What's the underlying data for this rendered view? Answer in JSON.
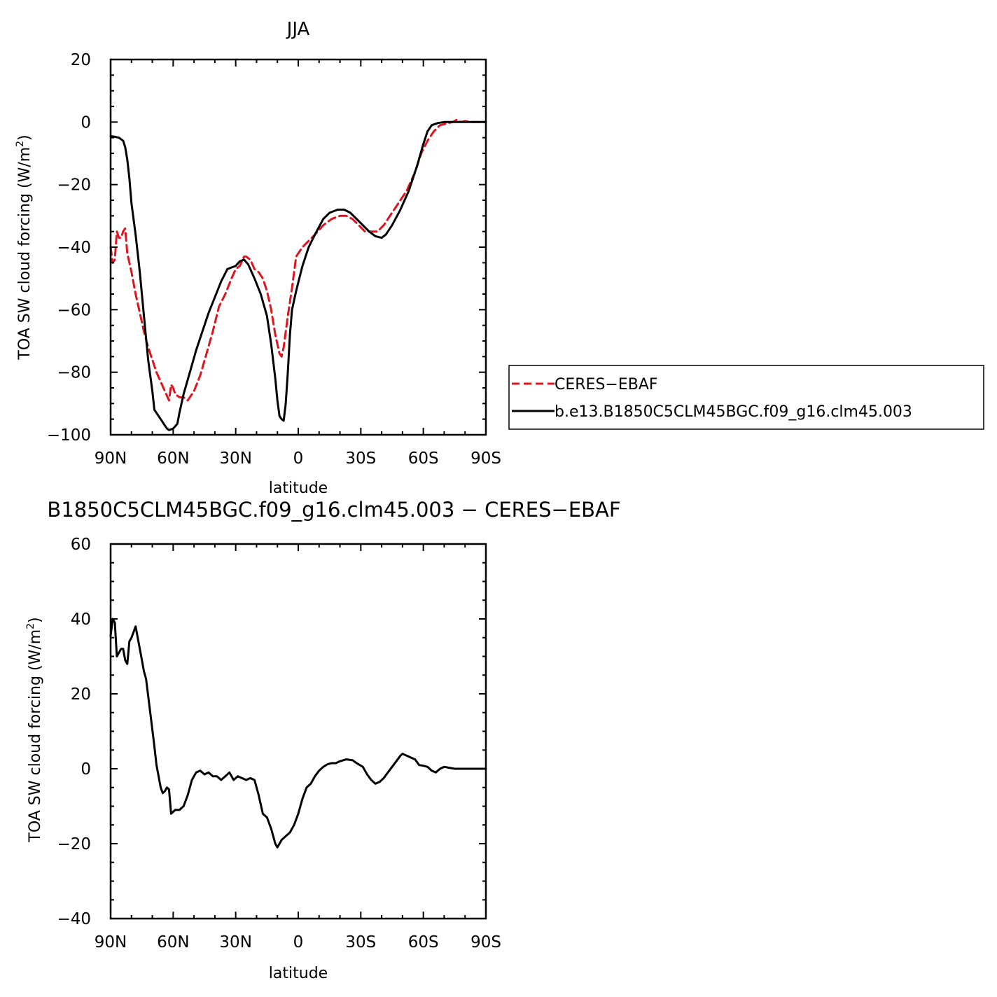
{
  "chart_data": [
    {
      "type": "line",
      "title": "JJA",
      "xlabel": "latitude",
      "ylabel": "TOA SW cloud forcing (W/m²)",
      "ylabel_parts": [
        "TOA SW cloud forcing (W/m",
        "2",
        ")"
      ],
      "x_units": "degrees latitude (positive = N, negative = S)",
      "xlim": [
        90,
        -90
      ],
      "ylim": [
        -100,
        20
      ],
      "x_ticks": [
        90,
        60,
        30,
        0,
        -30,
        -60,
        -90
      ],
      "x_tick_labels": [
        "90N",
        "60N",
        "30N",
        "0",
        "30S",
        "60S",
        "90S"
      ],
      "y_ticks": [
        20,
        0,
        -20,
        -40,
        -60,
        -80,
        -100
      ],
      "y_tick_labels": [
        "20",
        "0",
        "−20",
        "−40",
        "−60",
        "−80",
        "−100"
      ],
      "legend_position": "right",
      "series": [
        {
          "name": "CERES−EBAF",
          "color": "#e0141e",
          "dash": "dashed",
          "points": [
            [
              90,
              -40
            ],
            [
              89,
              -45
            ],
            [
              88,
              -44
            ],
            [
              87,
              -35
            ],
            [
              86,
              -37
            ],
            [
              85,
              -37
            ],
            [
              84,
              -35
            ],
            [
              83,
              -34
            ],
            [
              82,
              -42
            ],
            [
              80,
              -48
            ],
            [
              78,
              -55
            ],
            [
              76,
              -61
            ],
            [
              74,
              -67
            ],
            [
              72,
              -72
            ],
            [
              70,
              -76
            ],
            [
              68,
              -80
            ],
            [
              66,
              -83
            ],
            [
              64,
              -86
            ],
            [
              62,
              -89
            ],
            [
              61,
              -84
            ],
            [
              60,
              -85
            ],
            [
              59,
              -87
            ],
            [
              57,
              -88
            ],
            [
              55,
              -88
            ],
            [
              53,
              -89
            ],
            [
              50,
              -86
            ],
            [
              47,
              -81
            ],
            [
              44,
              -74
            ],
            [
              41,
              -67
            ],
            [
              38,
              -59
            ],
            [
              35,
              -55
            ],
            [
              32,
              -50
            ],
            [
              30,
              -47
            ],
            [
              28,
              -46
            ],
            [
              26,
              -43
            ],
            [
              25,
              -43
            ],
            [
              23,
              -44
            ],
            [
              21,
              -47
            ],
            [
              19,
              -48
            ],
            [
              17,
              -50
            ],
            [
              15,
              -54
            ],
            [
              13,
              -60
            ],
            [
              11,
              -68
            ],
            [
              9,
              -74
            ],
            [
              8,
              -75
            ],
            [
              7,
              -72
            ],
            [
              5,
              -62
            ],
            [
              3,
              -53
            ],
            [
              1,
              -43
            ],
            [
              -2,
              -40
            ],
            [
              -5,
              -38
            ],
            [
              -8,
              -36
            ],
            [
              -12,
              -33
            ],
            [
              -16,
              -31
            ],
            [
              -20,
              -30
            ],
            [
              -23,
              -30
            ],
            [
              -26,
              -31
            ],
            [
              -29,
              -33
            ],
            [
              -32,
              -35
            ],
            [
              -35,
              -35
            ],
            [
              -38,
              -35
            ],
            [
              -41,
              -33
            ],
            [
              -44,
              -30
            ],
            [
              -48,
              -26
            ],
            [
              -52,
              -22
            ],
            [
              -56,
              -16
            ],
            [
              -59,
              -10
            ],
            [
              -62,
              -6
            ],
            [
              -65,
              -3
            ],
            [
              -68,
              -1
            ],
            [
              -71,
              -0.5
            ],
            [
              -74,
              0
            ],
            [
              -76,
              0.7
            ],
            [
              -78,
              0
            ],
            [
              -80,
              0.3
            ],
            [
              -83,
              0
            ],
            [
              -86,
              0
            ],
            [
              -90,
              0
            ]
          ]
        },
        {
          "name": "b.e13.B1850C5CLM45BGC.f09_g16.clm45.003",
          "color": "#000000",
          "dash": "solid",
          "points": [
            [
              90,
              -4.5
            ],
            [
              88,
              -4.7
            ],
            [
              86,
              -5
            ],
            [
              84,
              -6
            ],
            [
              83,
              -8
            ],
            [
              82,
              -12
            ],
            [
              81,
              -18
            ],
            [
              80,
              -26
            ],
            [
              78,
              -36
            ],
            [
              76,
              -48
            ],
            [
              74,
              -62
            ],
            [
              72,
              -76
            ],
            [
              70,
              -86
            ],
            [
              69,
              -92
            ],
            [
              67,
              -94
            ],
            [
              65,
              -96
            ],
            [
              63,
              -98
            ],
            [
              62,
              -98.5
            ],
            [
              60,
              -98
            ],
            [
              58,
              -96.5
            ],
            [
              57,
              -93
            ],
            [
              55,
              -87
            ],
            [
              52,
              -80
            ],
            [
              49,
              -73
            ],
            [
              46,
              -67
            ],
            [
              43,
              -61
            ],
            [
              40,
              -56
            ],
            [
              37,
              -51
            ],
            [
              34,
              -47
            ],
            [
              32,
              -46.5
            ],
            [
              30,
              -46
            ],
            [
              28,
              -44.5
            ],
            [
              26,
              -44
            ],
            [
              24,
              -45.5
            ],
            [
              21,
              -50
            ],
            [
              18,
              -55
            ],
            [
              15,
              -62
            ],
            [
              13,
              -71
            ],
            [
              11,
              -82
            ],
            [
              10,
              -89
            ],
            [
              9,
              -94
            ],
            [
              8,
              -95
            ],
            [
              7,
              -95.5
            ],
            [
              6,
              -90
            ],
            [
              5,
              -80
            ],
            [
              4,
              -68
            ],
            [
              3,
              -60
            ],
            [
              1,
              -54
            ],
            [
              -2,
              -46
            ],
            [
              -5,
              -40
            ],
            [
              -8,
              -36
            ],
            [
              -12,
              -31
            ],
            [
              -15,
              -29
            ],
            [
              -19,
              -28
            ],
            [
              -22,
              -28
            ],
            [
              -25,
              -29
            ],
            [
              -28,
              -31
            ],
            [
              -31,
              -33
            ],
            [
              -34,
              -35
            ],
            [
              -37,
              -36.5
            ],
            [
              -40,
              -37
            ],
            [
              -42,
              -36
            ],
            [
              -45,
              -33
            ],
            [
              -49,
              -28
            ],
            [
              -53,
              -22
            ],
            [
              -57,
              -14
            ],
            [
              -60,
              -7
            ],
            [
              -62,
              -3
            ],
            [
              -64,
              -1
            ],
            [
              -67,
              -0.3
            ],
            [
              -70,
              0
            ],
            [
              -75,
              0
            ],
            [
              -80,
              0
            ],
            [
              -85,
              0
            ],
            [
              -90,
              0
            ]
          ]
        }
      ]
    },
    {
      "type": "line",
      "title": "B1850C5CLM45BGC.f09_g16.clm45.003 − CERES−EBAF",
      "xlabel": "latitude",
      "ylabel": "TOA SW cloud forcing (W/m²)",
      "ylabel_parts": [
        "TOA SW cloud forcing (W/m",
        "2",
        ")"
      ],
      "x_units": "degrees latitude (positive = N, negative = S)",
      "xlim": [
        90,
        -90
      ],
      "ylim": [
        -40,
        60
      ],
      "x_ticks": [
        90,
        60,
        30,
        0,
        -30,
        -60,
        -90
      ],
      "x_tick_labels": [
        "90N",
        "60N",
        "30N",
        "0",
        "30S",
        "60S",
        "90S"
      ],
      "y_ticks": [
        60,
        40,
        20,
        0,
        -20,
        -40
      ],
      "y_tick_labels": [
        "60",
        "40",
        "20",
        "0",
        "−20",
        "−40"
      ],
      "series": [
        {
          "color": "#000000",
          "dash": "solid",
          "points": [
            [
              90,
              35.5
            ],
            [
              89,
              40
            ],
            [
              88,
              39
            ],
            [
              87,
              30
            ],
            [
              86,
              31
            ],
            [
              85,
              32
            ],
            [
              84,
              32
            ],
            [
              83,
              29
            ],
            [
              82,
              28
            ],
            [
              81,
              34
            ],
            [
              80,
              35
            ],
            [
              79,
              36.5
            ],
            [
              78,
              38
            ],
            [
              77,
              35
            ],
            [
              76,
              32
            ],
            [
              75,
              29
            ],
            [
              74,
              26
            ],
            [
              73,
              24
            ],
            [
              71,
              15
            ],
            [
              69,
              6
            ],
            [
              68,
              1
            ],
            [
              67,
              -2
            ],
            [
              66,
              -5
            ],
            [
              65,
              -6.5
            ],
            [
              64,
              -6
            ],
            [
              63,
              -5
            ],
            [
              62,
              -5.5
            ],
            [
              61,
              -12
            ],
            [
              60,
              -11.5
            ],
            [
              59,
              -11
            ],
            [
              57,
              -11
            ],
            [
              55,
              -10
            ],
            [
              53,
              -7
            ],
            [
              51,
              -3
            ],
            [
              49,
              -1
            ],
            [
              47,
              -0.5
            ],
            [
              45,
              -1.5
            ],
            [
              43,
              -1
            ],
            [
              41,
              -2
            ],
            [
              39,
              -2
            ],
            [
              37,
              -3
            ],
            [
              35,
              -2
            ],
            [
              33,
              -1
            ],
            [
              31,
              -3
            ],
            [
              29,
              -2
            ],
            [
              27,
              -2.5
            ],
            [
              25,
              -3
            ],
            [
              23,
              -2.5
            ],
            [
              21,
              -3
            ],
            [
              19,
              -7
            ],
            [
              17,
              -12
            ],
            [
              15,
              -13
            ],
            [
              13,
              -16
            ],
            [
              11,
              -20
            ],
            [
              10,
              -21
            ],
            [
              9,
              -20
            ],
            [
              8,
              -19
            ],
            [
              6,
              -18
            ],
            [
              4,
              -17
            ],
            [
              2,
              -15
            ],
            [
              0,
              -12
            ],
            [
              -2,
              -8
            ],
            [
              -4,
              -5
            ],
            [
              -6,
              -4
            ],
            [
              -8,
              -2
            ],
            [
              -10,
              -0.5
            ],
            [
              -12,
              0.5
            ],
            [
              -14,
              1.2
            ],
            [
              -16,
              1.5
            ],
            [
              -18,
              1.5
            ],
            [
              -20,
              2
            ],
            [
              -23,
              2.5
            ],
            [
              -26,
              2.3
            ],
            [
              -28,
              1.5
            ],
            [
              -31,
              0.5
            ],
            [
              -33,
              -1.5
            ],
            [
              -35,
              -3
            ],
            [
              -37,
              -4
            ],
            [
              -39,
              -3.5
            ],
            [
              -41,
              -2.5
            ],
            [
              -43,
              -1
            ],
            [
              -45,
              0.5
            ],
            [
              -47,
              2
            ],
            [
              -49,
              3.5
            ],
            [
              -50,
              4
            ],
            [
              -52,
              3.5
            ],
            [
              -54,
              3
            ],
            [
              -56,
              2.5
            ],
            [
              -58,
              1
            ],
            [
              -60,
              0.8
            ],
            [
              -62,
              0.5
            ],
            [
              -64,
              -0.5
            ],
            [
              -66,
              -1
            ],
            [
              -68,
              0
            ],
            [
              -70,
              0.5
            ],
            [
              -75,
              0
            ],
            [
              -80,
              0
            ],
            [
              -85,
              0
            ],
            [
              -90,
              0
            ]
          ]
        }
      ]
    }
  ],
  "legend": {
    "entries": [
      {
        "label": "CERES−EBAF",
        "color": "#e0141e",
        "dash": "dashed"
      },
      {
        "label": "b.e13.B1850C5CLM45BGC.f09_g16.clm45.003",
        "color": "#000000",
        "dash": "solid"
      }
    ]
  }
}
